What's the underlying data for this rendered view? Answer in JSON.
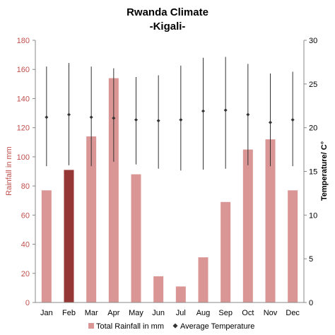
{
  "chart_data": {
    "type": "bar",
    "title": "Rwanda Climate",
    "subtitle": "-Kigali-",
    "categories": [
      "Jan",
      "Feb",
      "Mar",
      "Apr",
      "May",
      "Jun",
      "Jul",
      "Aug",
      "Sep",
      "Oct",
      "Nov",
      "Dec"
    ],
    "ylabel": "Rainfall in mm",
    "y2label": "Temperature/ C°",
    "ylim": [
      0,
      180
    ],
    "y2lim": [
      0,
      30
    ],
    "yticks": [
      0,
      20,
      40,
      60,
      80,
      100,
      120,
      140,
      160,
      180
    ],
    "y2ticks": [
      0,
      5,
      10,
      15,
      20,
      25,
      30
    ],
    "highlight_category": "Feb",
    "legend_position": "bottom",
    "grid": false,
    "series": [
      {
        "name": "Total Rainfall in mm",
        "type": "bar",
        "axis": "left",
        "color": "#d99694",
        "highlight_color": "#953735",
        "values": [
          77,
          91,
          114,
          154,
          88,
          18,
          11,
          31,
          69,
          105,
          112,
          77
        ]
      },
      {
        "name": "Average Temperature",
        "type": "scatter-errorbar",
        "axis": "right",
        "color": "#333333",
        "values": [
          21.2,
          21.5,
          21.2,
          21.1,
          20.9,
          20.8,
          20.9,
          21.9,
          22.0,
          21.5,
          20.6,
          20.9
        ],
        "max": [
          27.0,
          27.4,
          27.0,
          26.8,
          25.8,
          26.0,
          27.1,
          28.0,
          28.1,
          27.3,
          26.2,
          26.4
        ],
        "min": [
          15.6,
          15.7,
          15.6,
          16.1,
          15.8,
          15.3,
          15.1,
          15.2,
          15.3,
          15.7,
          15.6,
          15.6
        ]
      }
    ]
  }
}
